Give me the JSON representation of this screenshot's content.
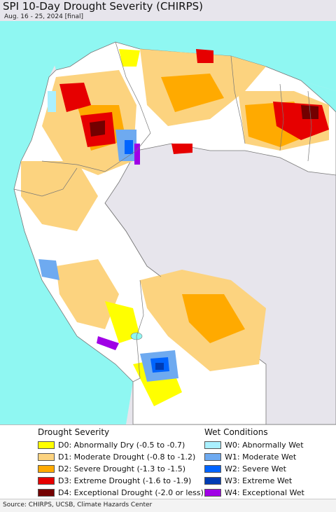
{
  "map": {
    "title": "SPI 10-Day Drought Severity (CHIRPS)",
    "subtitle": "Aug. 16 - 25, 2024 [final]",
    "colors": {
      "ocean": "#8ff7f2",
      "land": "#ffffff",
      "outside": "#e7e5ec",
      "border": "#777777"
    }
  },
  "legend": {
    "drought_title": "Drought Severity",
    "wet_title": "Wet Conditions",
    "drought": [
      {
        "label": "D0: Abnormally Dry (-0.5 to -0.7)",
        "color": "#ffff00"
      },
      {
        "label": "D1: Moderate Drought (-0.8 to -1.2)",
        "color": "#fcd37f"
      },
      {
        "label": "D2: Severe Drought (-1.3 to -1.5)",
        "color": "#ffaa00"
      },
      {
        "label": "D3: Extreme Drought (-1.6 to -1.9)",
        "color": "#e60000"
      },
      {
        "label": "D4: Exceptional Drought (-2.0 or less)",
        "color": "#730000"
      }
    ],
    "wet": [
      {
        "label": "W0: Abnormally Wet",
        "color": "#aaf0ff"
      },
      {
        "label": "W1: Moderate Wet",
        "color": "#6eaaf0"
      },
      {
        "label": "W2: Severe Wet",
        "color": "#0064ff"
      },
      {
        "label": "W3: Extreme Wet",
        "color": "#003cb4"
      },
      {
        "label": "W4: Exceptional Wet",
        "color": "#a000e6"
      }
    ]
  },
  "footer": {
    "source": "Source: CHIRPS, UCSB, Climate Hazards Center"
  }
}
